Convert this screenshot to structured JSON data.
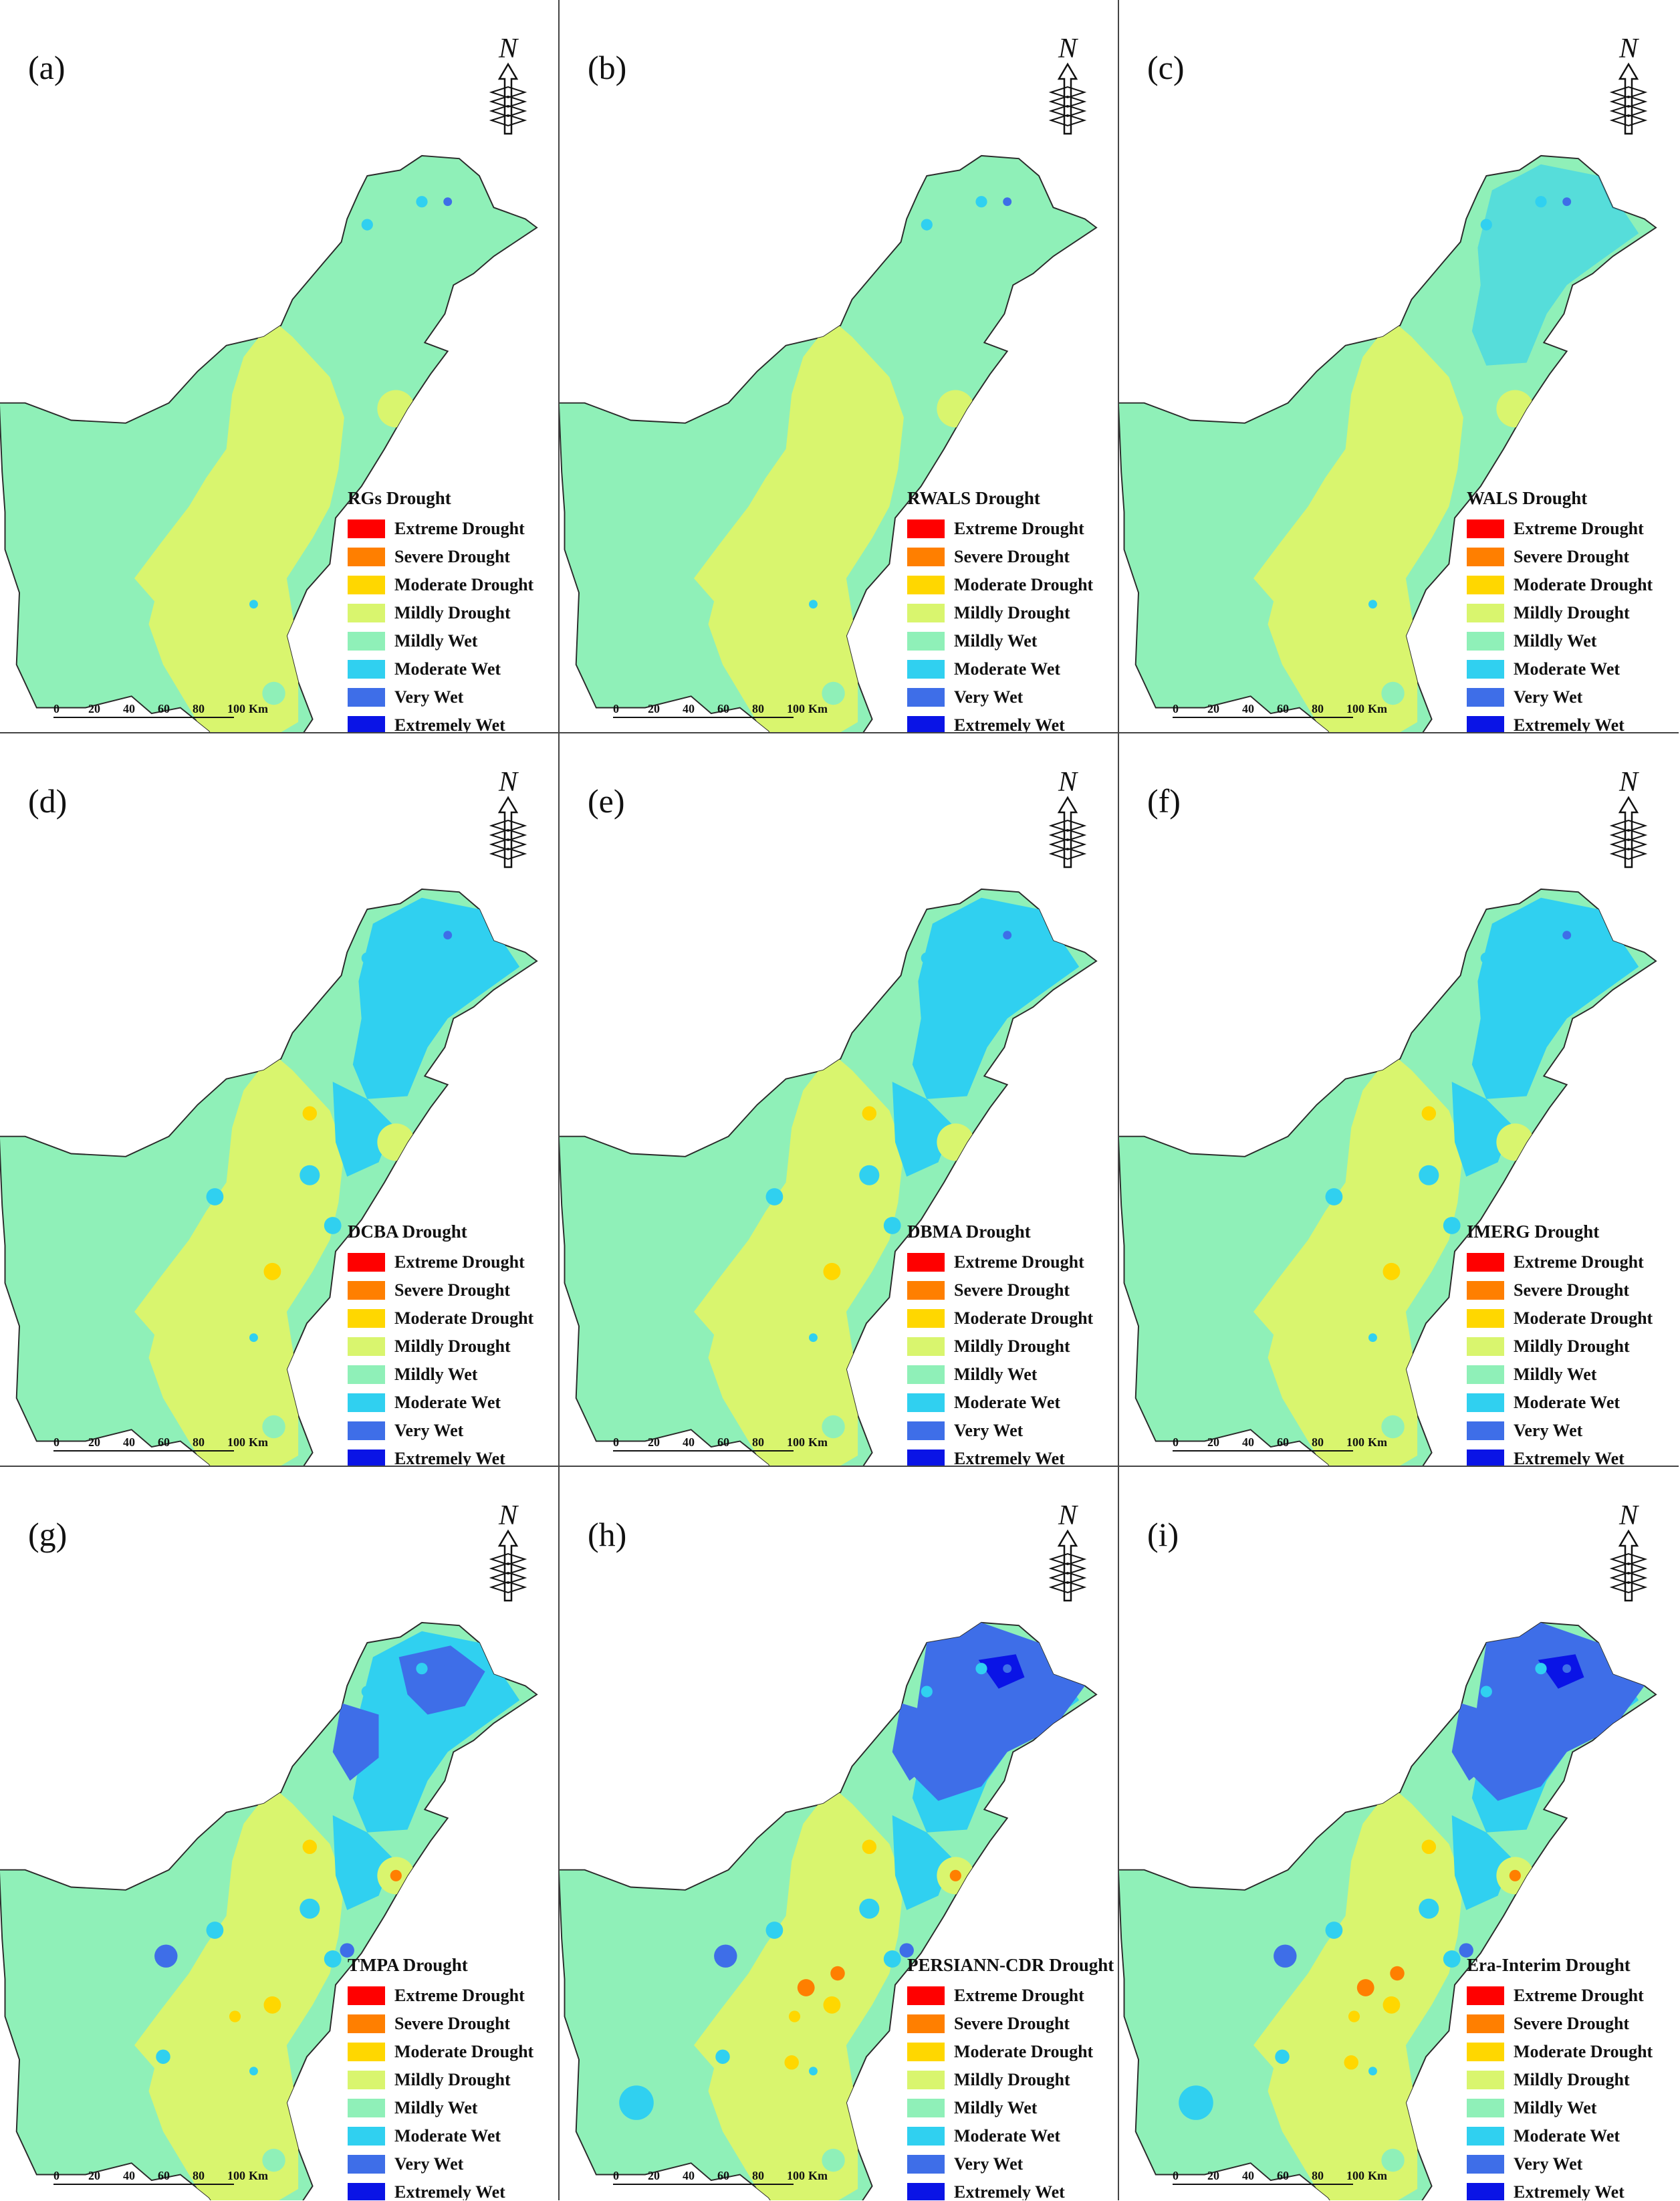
{
  "legend_classes": [
    {
      "label": "Extreme Drought",
      "color": "#ff0000"
    },
    {
      "label": "Severe Drought",
      "color": "#ff7f00"
    },
    {
      "label": "Moderate Drought",
      "color": "#ffd700"
    },
    {
      "label": "Mildly Drought",
      "color": "#d9f56e"
    },
    {
      "label": "Mildly Wet",
      "color": "#8ff0b8"
    },
    {
      "label": "Moderate Wet",
      "color": "#30d0f0"
    },
    {
      "label": "Very Wet",
      "color": "#3e6ee8"
    },
    {
      "label": "Extremely Wet",
      "color": "#0a14e6"
    }
  ],
  "north_letter": "N",
  "scale": {
    "ticks": [
      "0",
      "20",
      "40",
      "60",
      "80",
      "100"
    ],
    "unit": "Km"
  },
  "panels": [
    {
      "label": "(a)",
      "title": "RGs Drought",
      "wetness": 0
    },
    {
      "label": "(b)",
      "title": "RWALS Drought",
      "wetness": 0
    },
    {
      "label": "(c)",
      "title": "WALS Drought",
      "wetness": 1
    },
    {
      "label": "(d)",
      "title": "DCBA Drought",
      "wetness": 2
    },
    {
      "label": "(e)",
      "title": "DBMA Drought",
      "wetness": 2
    },
    {
      "label": "(f)",
      "title": "IMERG Drought",
      "wetness": 2
    },
    {
      "label": "(g)",
      "title": "TMPA Drought",
      "wetness": 3
    },
    {
      "label": "(h)",
      "title": "PERSIANN-CDR Drought",
      "wetness": 4
    },
    {
      "label": "(i)",
      "title": "Era-Interim Drought",
      "wetness": 4
    }
  ]
}
